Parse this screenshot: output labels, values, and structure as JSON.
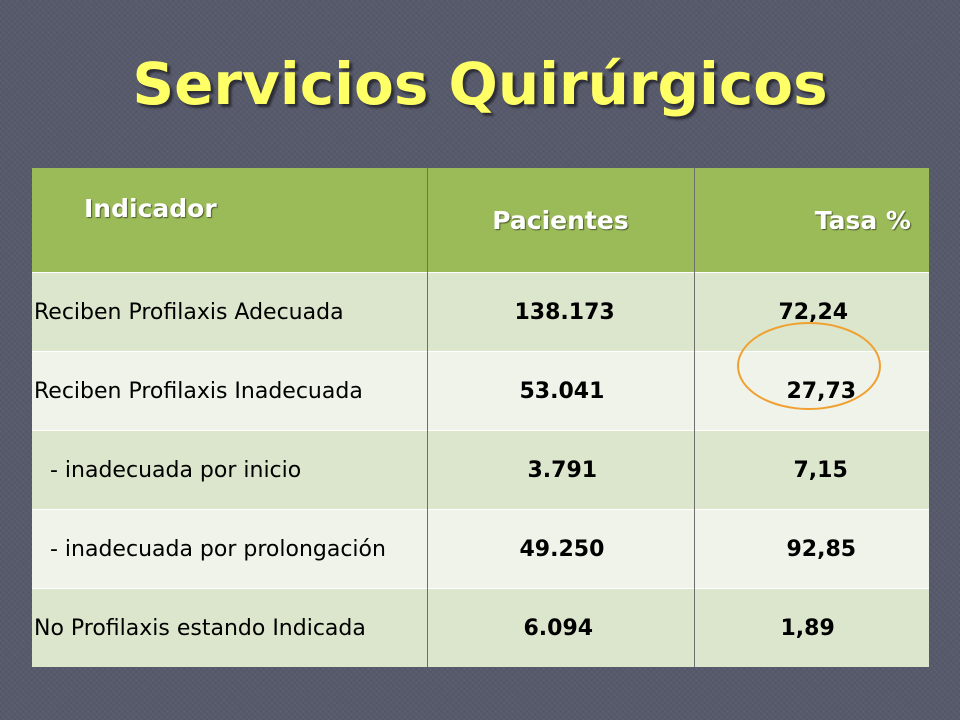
{
  "slide": {
    "title": "Servicios Quirúrgicos"
  },
  "table": {
    "headers": [
      "Indicador",
      "Pacientes",
      "Tasa %"
    ],
    "rows": [
      {
        "label": "Reciben Profilaxis Adecuada",
        "pacientes": "138.173",
        "tasa": "72,24"
      },
      {
        "label": "Reciben Profilaxis Inadecuada",
        "pacientes": "53.041",
        "tasa": "27,73"
      },
      {
        "label": "-  inadecuada por inicio",
        "pacientes": "3.791",
        "tasa": "7,15"
      },
      {
        "label": "-  inadecuada por prolongación",
        "pacientes": "49.250",
        "tasa": "92,85"
      },
      {
        "label": "No Profilaxis estando Indicada",
        "pacientes": "6.094",
        "tasa": "1,89"
      }
    ]
  },
  "colors": {
    "background": "#575a6b",
    "title": "#ffff66",
    "header": "#9bbb59",
    "row_odd": "#dce6cc",
    "row_even": "#eff3e9",
    "highlight_circle": "#f0a030"
  }
}
